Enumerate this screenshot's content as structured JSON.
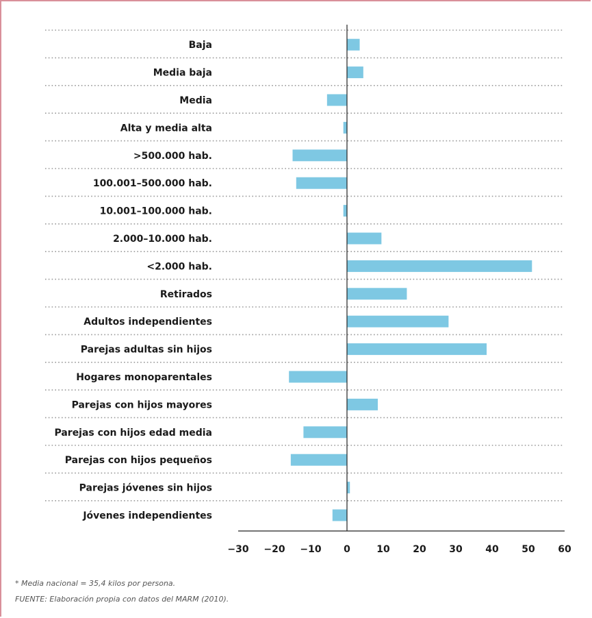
{
  "colors": {
    "bar": "#7ec8e3",
    "frame": "#d9909a",
    "text": "#1a1a1a",
    "grid": "#9a9a9a",
    "axis": "#222222"
  },
  "chart_data": {
    "type": "bar",
    "orientation": "horizontal",
    "categories": [
      "Baja",
      "Media baja",
      "Media",
      "Alta y media alta",
      ">500.000 hab.",
      "100.001–500.000 hab.",
      "10.001–100.000 hab.",
      "2.000–10.000 hab.",
      "<2.000 hab.",
      "Retirados",
      "Adultos independientes",
      "Parejas adultas sin hijos",
      "Hogares monoparentales",
      "Parejas con hijos mayores",
      "Parejas con hijos edad media",
      "Parejas con hijos pequeños",
      "Parejas jóvenes sin hijos",
      "Jóvenes independientes"
    ],
    "values": [
      3.5,
      4.5,
      -5.5,
      -1,
      -15,
      -14,
      -1,
      9.5,
      51,
      16.5,
      28,
      38.5,
      -16,
      8.5,
      -12,
      -15.5,
      0.8,
      -4
    ],
    "xlim": [
      -30,
      60
    ],
    "xticks": [
      "−30",
      "−20",
      "−10",
      "0",
      "10",
      "20",
      "30",
      "40",
      "50",
      "60"
    ],
    "grid": "dotted horizontal separators"
  },
  "notes": {
    "line1": "*  Media nacional =  35,4 kilos por persona.",
    "line2": "FUENTE: Elaboración propia con datos del MARM (2010)."
  }
}
